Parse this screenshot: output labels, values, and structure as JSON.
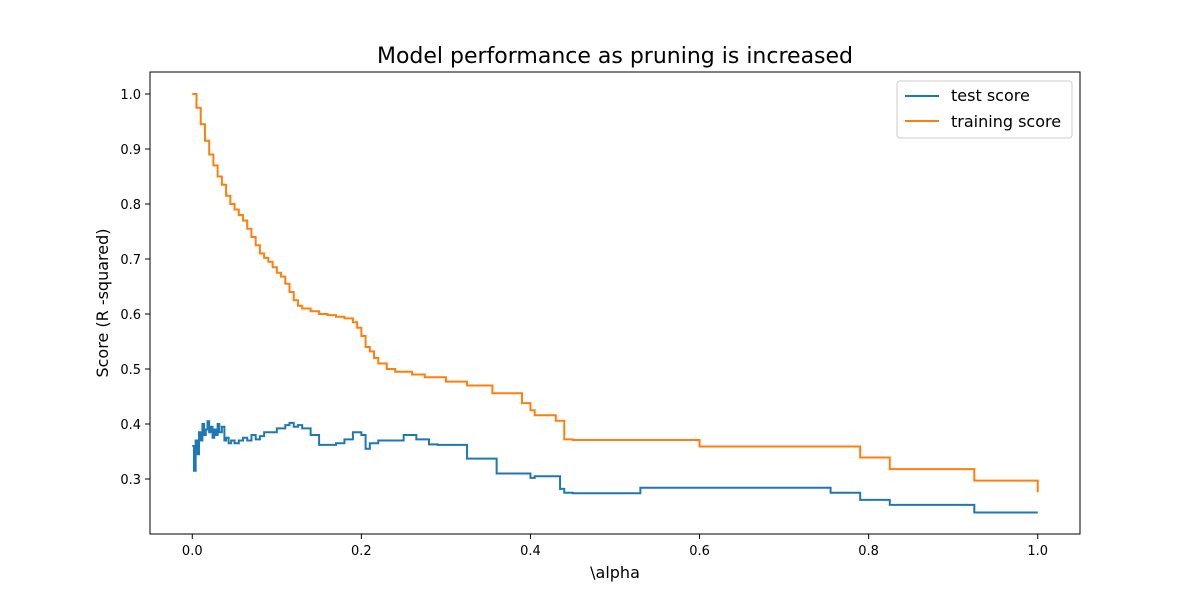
{
  "chart_data": {
    "type": "line",
    "title": "Model performance as pruning is increased",
    "xlabel": "\\alpha",
    "ylabel": "Score (R -squared)",
    "xlim": [
      -0.05,
      1.05
    ],
    "ylim": [
      0.2,
      1.04
    ],
    "xticks": [
      0.0,
      0.2,
      0.4,
      0.6,
      0.8,
      1.0
    ],
    "xtick_labels": [
      "0.0",
      "0.2",
      "0.4",
      "0.6",
      "0.8",
      "1.0"
    ],
    "yticks": [
      0.3,
      0.4,
      0.5,
      0.6,
      0.7,
      0.8,
      0.9,
      1.0
    ],
    "ytick_labels": [
      "0.3",
      "0.4",
      "0.5",
      "0.6",
      "0.7",
      "0.8",
      "0.9",
      "1.0"
    ],
    "grid": false,
    "legend_position": "top-right",
    "series": [
      {
        "name": "test score",
        "color": "#1f77b4",
        "step": true,
        "x": [
          0.0,
          0.002,
          0.004,
          0.006,
          0.008,
          0.01,
          0.012,
          0.014,
          0.016,
          0.018,
          0.02,
          0.022,
          0.024,
          0.026,
          0.028,
          0.03,
          0.032,
          0.035,
          0.038,
          0.04,
          0.043,
          0.046,
          0.05,
          0.055,
          0.06,
          0.065,
          0.07,
          0.075,
          0.08,
          0.085,
          0.09,
          0.1,
          0.11,
          0.115,
          0.12,
          0.125,
          0.13,
          0.14,
          0.15,
          0.17,
          0.18,
          0.19,
          0.2,
          0.205,
          0.21,
          0.22,
          0.25,
          0.265,
          0.28,
          0.29,
          0.325,
          0.34,
          0.36,
          0.39,
          0.4,
          0.405,
          0.43,
          0.435,
          0.44,
          0.45,
          0.53,
          0.6,
          0.755,
          0.79,
          0.825,
          0.925,
          1.0
        ],
        "y": [
          0.36,
          0.315,
          0.37,
          0.345,
          0.385,
          0.37,
          0.4,
          0.38,
          0.39,
          0.405,
          0.385,
          0.395,
          0.375,
          0.39,
          0.38,
          0.4,
          0.385,
          0.395,
          0.37,
          0.375,
          0.365,
          0.37,
          0.365,
          0.37,
          0.375,
          0.37,
          0.38,
          0.372,
          0.378,
          0.385,
          0.385,
          0.392,
          0.398,
          0.402,
          0.395,
          0.398,
          0.392,
          0.38,
          0.362,
          0.365,
          0.372,
          0.385,
          0.38,
          0.355,
          0.365,
          0.37,
          0.38,
          0.372,
          0.363,
          0.362,
          0.337,
          0.337,
          0.31,
          0.31,
          0.302,
          0.305,
          0.305,
          0.282,
          0.275,
          0.274,
          0.284,
          0.284,
          0.275,
          0.262,
          0.253,
          0.239,
          0.239
        ]
      },
      {
        "name": "training score",
        "color": "#ff7f0e",
        "step": true,
        "x": [
          0.0,
          0.005,
          0.01,
          0.015,
          0.02,
          0.025,
          0.03,
          0.035,
          0.04,
          0.045,
          0.05,
          0.055,
          0.06,
          0.065,
          0.07,
          0.075,
          0.08,
          0.085,
          0.09,
          0.095,
          0.1,
          0.105,
          0.11,
          0.115,
          0.12,
          0.125,
          0.13,
          0.14,
          0.15,
          0.16,
          0.17,
          0.18,
          0.19,
          0.195,
          0.2,
          0.205,
          0.21,
          0.215,
          0.22,
          0.23,
          0.24,
          0.26,
          0.275,
          0.3,
          0.3,
          0.325,
          0.355,
          0.39,
          0.4,
          0.405,
          0.43,
          0.44,
          0.45,
          0.53,
          0.6,
          0.755,
          0.79,
          0.825,
          0.925,
          1.0
        ],
        "y": [
          1.0,
          0.975,
          0.945,
          0.915,
          0.89,
          0.87,
          0.85,
          0.835,
          0.815,
          0.8,
          0.79,
          0.78,
          0.77,
          0.755,
          0.74,
          0.725,
          0.71,
          0.702,
          0.695,
          0.685,
          0.675,
          0.668,
          0.655,
          0.64,
          0.625,
          0.615,
          0.61,
          0.605,
          0.6,
          0.598,
          0.595,
          0.592,
          0.585,
          0.575,
          0.56,
          0.54,
          0.532,
          0.52,
          0.51,
          0.5,
          0.495,
          0.49,
          0.485,
          0.478,
          0.477,
          0.47,
          0.456,
          0.438,
          0.425,
          0.416,
          0.406,
          0.372,
          0.371,
          0.371,
          0.359,
          0.359,
          0.339,
          0.318,
          0.297,
          0.276
        ]
      }
    ]
  }
}
